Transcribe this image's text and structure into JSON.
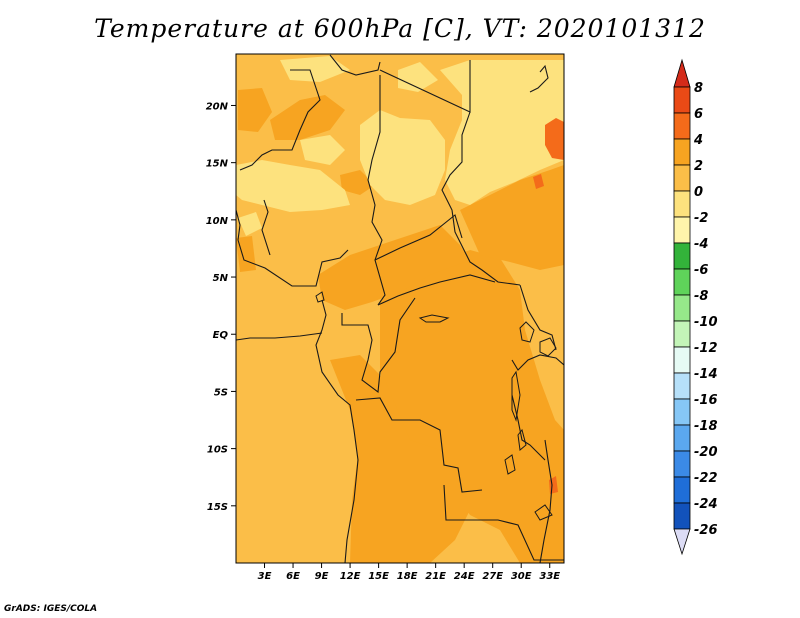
{
  "title": "Temperature at 600hPa [C], VT: 2020101312",
  "credit": "GrADS: IGES/COLA",
  "map": {
    "lon_range": [
      0,
      34.5
    ],
    "lat_range": [
      -20,
      24.5
    ],
    "lon_ticks": [
      {
        "value": 3,
        "label": "3E"
      },
      {
        "value": 6,
        "label": "6E"
      },
      {
        "value": 9,
        "label": "9E"
      },
      {
        "value": 12,
        "label": "12E"
      },
      {
        "value": 15,
        "label": "15E"
      },
      {
        "value": 18,
        "label": "18E"
      },
      {
        "value": 21,
        "label": "21E"
      },
      {
        "value": 24,
        "label": "24E"
      },
      {
        "value": 27,
        "label": "27E"
      },
      {
        "value": 30,
        "label": "30E"
      },
      {
        "value": 33,
        "label": "33E"
      }
    ],
    "lat_ticks": [
      {
        "value": 20,
        "label": "20N"
      },
      {
        "value": 15,
        "label": "15N"
      },
      {
        "value": 10,
        "label": "10N"
      },
      {
        "value": 5,
        "label": "5N"
      },
      {
        "value": 0,
        "label": "EQ"
      },
      {
        "value": -5,
        "label": "5S"
      },
      {
        "value": -10,
        "label": "10S"
      },
      {
        "value": -15,
        "label": "15S"
      }
    ],
    "background_fill": "#fbbe48",
    "warm_region_fill": "#f7a421",
    "cool_region_fill": "#fde27e",
    "hot_spot_fill": "#f46b1a",
    "border_color": "#1a1a1a"
  },
  "colorbar": {
    "labels": [
      "8",
      "6",
      "4",
      "2",
      "0",
      "-2",
      "-4",
      "-6",
      "-8",
      "-10",
      "-12",
      "-14",
      "-16",
      "-18",
      "-20",
      "-22",
      "-24",
      "-26"
    ],
    "colors": [
      "#ea4a16",
      "#f46b1a",
      "#f7a421",
      "#fbbe48",
      "#fde27e",
      "#fff5ab",
      "#33b33a",
      "#5fd35a",
      "#96e88a",
      "#c3f5b8",
      "#e6fbf5",
      "#b6e0f9",
      "#86c7f6",
      "#5ba8ef",
      "#3b8ae6",
      "#1f6ed8",
      "#1252bb",
      "#0c3a9e",
      "#001a66"
    ],
    "top_arrow_color": "#d42b1a",
    "bottom_arrow_color": "#dcdcf5"
  }
}
